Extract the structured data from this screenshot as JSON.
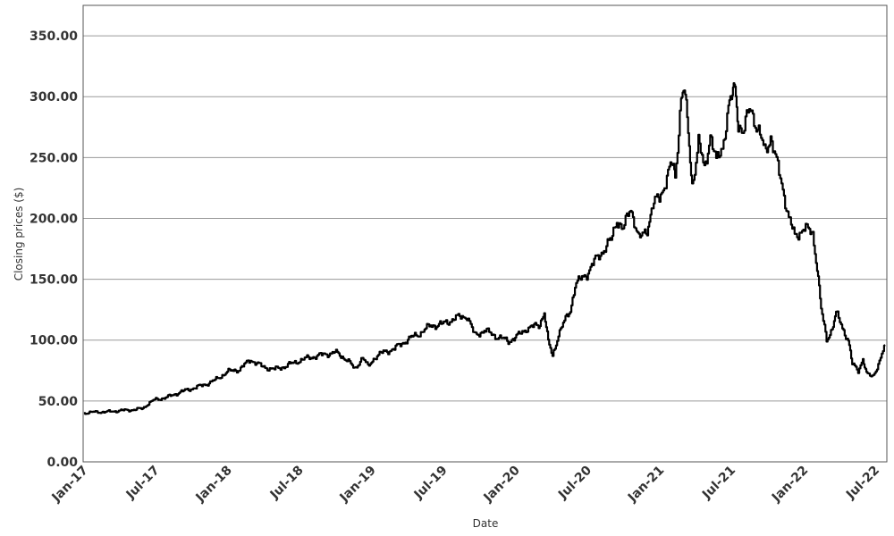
{
  "chart_data": {
    "type": "line",
    "title": "",
    "xlabel": "Date",
    "ylabel": "Closing prices ($)",
    "ylim": [
      0,
      375
    ],
    "xlim": [
      "2017-01-01",
      "2022-08-01"
    ],
    "grid": "horizontal",
    "y_ticks": [
      0,
      50,
      100,
      150,
      200,
      250,
      300,
      350
    ],
    "y_tick_labels": [
      "0.00",
      "50.00",
      "100.00",
      "150.00",
      "200.00",
      "250.00",
      "300.00",
      "350.00"
    ],
    "x_ticks": [
      "2017-01-01",
      "2017-07-01",
      "2018-01-01",
      "2018-07-01",
      "2019-01-01",
      "2019-07-01",
      "2020-01-01",
      "2020-07-01",
      "2021-01-01",
      "2021-07-01",
      "2022-01-01",
      "2022-07-01"
    ],
    "x_tick_labels": [
      "Jan-17",
      "Jul-17",
      "Jan-18",
      "Jul-18",
      "Jan-19",
      "Jul-19",
      "Jan-20",
      "Jul-20",
      "Jan-21",
      "Jul-21",
      "Jan-22",
      "Jul-22"
    ],
    "series": [
      {
        "color": "#000000",
        "points": [
          [
            "2017-01-03",
            40
          ],
          [
            "2017-02-01",
            41
          ],
          [
            "2017-03-01",
            41
          ],
          [
            "2017-04-01",
            42
          ],
          [
            "2017-05-15",
            43
          ],
          [
            "2017-06-01",
            44
          ],
          [
            "2017-06-15",
            48
          ],
          [
            "2017-07-01",
            51
          ],
          [
            "2017-08-01",
            53
          ],
          [
            "2017-09-01",
            57
          ],
          [
            "2017-10-01",
            60
          ],
          [
            "2017-11-01",
            63
          ],
          [
            "2017-12-01",
            67
          ],
          [
            "2018-01-01",
            74
          ],
          [
            "2018-02-01",
            76
          ],
          [
            "2018-03-01",
            84
          ],
          [
            "2018-04-01",
            78
          ],
          [
            "2018-05-01",
            76
          ],
          [
            "2018-06-01",
            79
          ],
          [
            "2018-07-01",
            83
          ],
          [
            "2018-08-01",
            86
          ],
          [
            "2018-09-01",
            88
          ],
          [
            "2018-10-01",
            90
          ],
          [
            "2018-11-01",
            84
          ],
          [
            "2018-11-20",
            76
          ],
          [
            "2018-12-10",
            86
          ],
          [
            "2018-12-24",
            78
          ],
          [
            "2019-01-10",
            86
          ],
          [
            "2019-02-01",
            90
          ],
          [
            "2019-03-01",
            93
          ],
          [
            "2019-04-01",
            100
          ],
          [
            "2019-05-01",
            105
          ],
          [
            "2019-06-01",
            112
          ],
          [
            "2019-07-01",
            113
          ],
          [
            "2019-08-01",
            118
          ],
          [
            "2019-09-01",
            120
          ],
          [
            "2019-09-20",
            104
          ],
          [
            "2019-10-15",
            108
          ],
          [
            "2019-11-15",
            103
          ],
          [
            "2019-12-15",
            99
          ],
          [
            "2020-01-10",
            104
          ],
          [
            "2020-02-01",
            110
          ],
          [
            "2020-03-01",
            112
          ],
          [
            "2020-03-15",
            123
          ],
          [
            "2020-03-25",
            98
          ],
          [
            "2020-04-05",
            87
          ],
          [
            "2020-04-20",
            105
          ],
          [
            "2020-05-05",
            115
          ],
          [
            "2020-05-20",
            125
          ],
          [
            "2020-06-01",
            145
          ],
          [
            "2020-07-01",
            155
          ],
          [
            "2020-08-01",
            170
          ],
          [
            "2020-09-01",
            182
          ],
          [
            "2020-09-15",
            200
          ],
          [
            "2020-10-01",
            190
          ],
          [
            "2020-10-20",
            210
          ],
          [
            "2020-11-10",
            182
          ],
          [
            "2020-12-01",
            192
          ],
          [
            "2020-12-15",
            210
          ],
          [
            "2021-01-01",
            218
          ],
          [
            "2021-01-20",
            233
          ],
          [
            "2021-02-01",
            245
          ],
          [
            "2021-02-10",
            235
          ],
          [
            "2021-02-25",
            300
          ],
          [
            "2021-03-05",
            305
          ],
          [
            "2021-03-15",
            270
          ],
          [
            "2021-03-25",
            228
          ],
          [
            "2021-04-10",
            262
          ],
          [
            "2021-04-25",
            240
          ],
          [
            "2021-05-10",
            270
          ],
          [
            "2021-05-25",
            245
          ],
          [
            "2021-06-10",
            260
          ],
          [
            "2021-06-25",
            290
          ],
          [
            "2021-07-05",
            300
          ],
          [
            "2021-07-12",
            308
          ],
          [
            "2021-07-20",
            280
          ],
          [
            "2021-08-01",
            270
          ],
          [
            "2021-08-20",
            292
          ],
          [
            "2021-09-10",
            270
          ],
          [
            "2021-09-25",
            255
          ],
          [
            "2021-10-10",
            268
          ],
          [
            "2021-10-25",
            245
          ],
          [
            "2021-11-10",
            225
          ],
          [
            "2021-11-25",
            200
          ],
          [
            "2021-12-10",
            185
          ],
          [
            "2022-01-01",
            192
          ],
          [
            "2022-01-25",
            188
          ],
          [
            "2022-02-05",
            160
          ],
          [
            "2022-02-15",
            125
          ],
          [
            "2022-03-01",
            100
          ],
          [
            "2022-03-15",
            110
          ],
          [
            "2022-03-25",
            122
          ],
          [
            "2022-04-10",
            110
          ],
          [
            "2022-04-25",
            100
          ],
          [
            "2022-05-05",
            80
          ],
          [
            "2022-05-20",
            75
          ],
          [
            "2022-06-01",
            85
          ],
          [
            "2022-06-10",
            72
          ],
          [
            "2022-06-25",
            70
          ],
          [
            "2022-07-10",
            80
          ],
          [
            "2022-07-28",
            96
          ]
        ]
      }
    ]
  }
}
